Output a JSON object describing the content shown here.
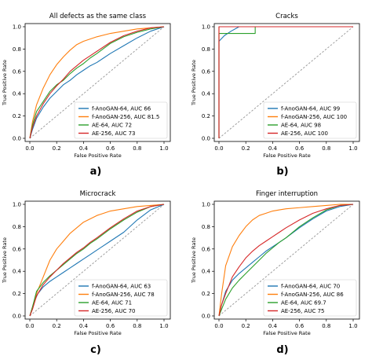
{
  "colors": {
    "f-AnoGAN-64": "#1f77b4",
    "f-AnoGAN-256": "#ff7f0e",
    "AE-64": "#2ca02c",
    "AE-256": "#d62728",
    "chance": "#999999"
  },
  "chart_data": [
    {
      "type": "line",
      "letter": "a)",
      "title": "All defects as the same class",
      "xlabel": "False Positive Rate",
      "ylabel": "True Positive Rate",
      "xlim": [
        0,
        1
      ],
      "ylim": [
        0,
        1
      ],
      "xticks": [
        "0.0",
        "0.2",
        "0.4",
        "0.6",
        "0.8",
        "1.0"
      ],
      "yticks": [
        "0.0",
        "0.2",
        "0.4",
        "0.6",
        "0.8",
        "1.0"
      ],
      "grid": false,
      "legend": "lower-right",
      "diagonal": true,
      "series": [
        {
          "name": "f-AnoGAN-64, AUC 66",
          "x": [
            0,
            0.02,
            0.05,
            0.1,
            0.15,
            0.2,
            0.25,
            0.3,
            0.35,
            0.4,
            0.45,
            0.5,
            0.55,
            0.6,
            0.7,
            0.8,
            0.9,
            1.0
          ],
          "y": [
            0,
            0.08,
            0.18,
            0.28,
            0.36,
            0.42,
            0.48,
            0.52,
            0.57,
            0.61,
            0.65,
            0.68,
            0.72,
            0.76,
            0.83,
            0.9,
            0.96,
            1.0
          ]
        },
        {
          "name": "f-AnoGAN-256, AUC 81.5",
          "x": [
            0,
            0.02,
            0.05,
            0.1,
            0.15,
            0.2,
            0.25,
            0.3,
            0.35,
            0.4,
            0.5,
            0.6,
            0.7,
            0.8,
            0.9,
            1.0
          ],
          "y": [
            0,
            0.15,
            0.3,
            0.45,
            0.57,
            0.66,
            0.73,
            0.79,
            0.84,
            0.87,
            0.91,
            0.94,
            0.96,
            0.98,
            0.99,
            1.0
          ]
        },
        {
          "name": "AE-64, AUC 72",
          "x": [
            0,
            0.02,
            0.05,
            0.1,
            0.15,
            0.2,
            0.25,
            0.3,
            0.35,
            0.4,
            0.45,
            0.5,
            0.6,
            0.7,
            0.8,
            0.9,
            1.0
          ],
          "y": [
            0,
            0.12,
            0.24,
            0.33,
            0.42,
            0.48,
            0.52,
            0.58,
            0.63,
            0.67,
            0.72,
            0.76,
            0.85,
            0.91,
            0.95,
            0.98,
            1.0
          ]
        },
        {
          "name": "AE-256, AUC 73",
          "x": [
            0,
            0.02,
            0.05,
            0.1,
            0.15,
            0.2,
            0.25,
            0.3,
            0.35,
            0.4,
            0.45,
            0.5,
            0.6,
            0.7,
            0.8,
            0.9,
            1.0
          ],
          "y": [
            0,
            0.1,
            0.2,
            0.31,
            0.4,
            0.47,
            0.53,
            0.6,
            0.65,
            0.7,
            0.74,
            0.78,
            0.86,
            0.92,
            0.96,
            0.99,
            1.0
          ]
        }
      ]
    },
    {
      "type": "line",
      "letter": "b)",
      "title": "Cracks",
      "xlabel": "False Positive Rate",
      "ylabel": "True Positive Rate",
      "xlim": [
        0,
        1
      ],
      "ylim": [
        0,
        1
      ],
      "xticks": [
        "0.0",
        "0.2",
        "0.4",
        "0.6",
        "0.8",
        "1.0"
      ],
      "yticks": [
        "0.0",
        "0.2",
        "0.4",
        "0.6",
        "0.8",
        "1.0"
      ],
      "grid": false,
      "legend": "lower-right",
      "diagonal": true,
      "series": [
        {
          "name": "f-AnoGAN-64, AUC 99",
          "x": [
            0,
            0,
            0.04,
            0.09,
            0.15,
            1.0
          ],
          "y": [
            0,
            0.87,
            0.92,
            0.96,
            1.0,
            1.0
          ]
        },
        {
          "name": "f-AnoGAN-256, AUC 100",
          "x": [
            0,
            0,
            1.0
          ],
          "y": [
            0,
            1.0,
            1.0
          ]
        },
        {
          "name": "AE-64, AUC 98",
          "x": [
            0,
            0,
            0.27,
            0.27,
            1.0
          ],
          "y": [
            0,
            0.94,
            0.94,
            1.0,
            1.0
          ]
        },
        {
          "name": "AE-256, AUC 100",
          "x": [
            0,
            0,
            1.0
          ],
          "y": [
            0,
            1.0,
            1.0
          ]
        }
      ]
    },
    {
      "type": "line",
      "letter": "c)",
      "title": "Microcrack",
      "xlabel": "False Positive Rate",
      "ylabel": "True Positive Rate",
      "xlim": [
        0,
        1
      ],
      "ylim": [
        0,
        1
      ],
      "xticks": [
        "0.0",
        "0.2",
        "0.4",
        "0.6",
        "0.8",
        "1.0"
      ],
      "yticks": [
        "0.0",
        "0.2",
        "0.4",
        "0.6",
        "0.8",
        "1.0"
      ],
      "grid": false,
      "legend": "lower-right",
      "diagonal": true,
      "series": [
        {
          "name": "f-AnoGAN-64, AUC 63",
          "x": [
            0,
            0.03,
            0.06,
            0.1,
            0.15,
            0.2,
            0.25,
            0.3,
            0.35,
            0.4,
            0.45,
            0.5,
            0.55,
            0.6,
            0.7,
            0.8,
            0.9,
            1.0
          ],
          "y": [
            0,
            0.12,
            0.2,
            0.26,
            0.31,
            0.35,
            0.39,
            0.43,
            0.47,
            0.51,
            0.55,
            0.59,
            0.63,
            0.67,
            0.75,
            0.86,
            0.95,
            1.0
          ]
        },
        {
          "name": "f-AnoGAN-256, AUC 78",
          "x": [
            0,
            0.02,
            0.05,
            0.1,
            0.15,
            0.2,
            0.25,
            0.3,
            0.35,
            0.4,
            0.5,
            0.6,
            0.7,
            0.8,
            0.9,
            1.0
          ],
          "y": [
            0,
            0.08,
            0.2,
            0.35,
            0.5,
            0.6,
            0.67,
            0.74,
            0.79,
            0.84,
            0.9,
            0.94,
            0.96,
            0.98,
            0.99,
            1.0
          ]
        },
        {
          "name": "AE-64, AUC 71",
          "x": [
            0,
            0.02,
            0.05,
            0.1,
            0.15,
            0.2,
            0.25,
            0.3,
            0.35,
            0.4,
            0.45,
            0.5,
            0.6,
            0.7,
            0.8,
            0.9,
            1.0
          ],
          "y": [
            0,
            0.08,
            0.22,
            0.3,
            0.36,
            0.41,
            0.46,
            0.51,
            0.56,
            0.6,
            0.65,
            0.69,
            0.78,
            0.86,
            0.93,
            0.98,
            1.0
          ]
        },
        {
          "name": "AE-256, AUC 70",
          "x": [
            0,
            0.02,
            0.05,
            0.1,
            0.15,
            0.2,
            0.25,
            0.3,
            0.35,
            0.4,
            0.45,
            0.5,
            0.6,
            0.7,
            0.8,
            0.9,
            1.0
          ],
          "y": [
            0,
            0.06,
            0.18,
            0.28,
            0.35,
            0.41,
            0.47,
            0.52,
            0.57,
            0.61,
            0.66,
            0.7,
            0.79,
            0.87,
            0.94,
            0.98,
            1.0
          ]
        }
      ]
    },
    {
      "type": "line",
      "letter": "d)",
      "title": "Finger interruption",
      "xlabel": "False Positive Rate",
      "ylabel": "True Positive Rate",
      "xlim": [
        0,
        1
      ],
      "ylim": [
        0,
        1
      ],
      "xticks": [
        "0.0",
        "0.2",
        "0.4",
        "0.6",
        "0.8",
        "1.0"
      ],
      "yticks": [
        "0.0",
        "0.2",
        "0.4",
        "0.6",
        "0.8",
        "1.0"
      ],
      "grid": false,
      "legend": "lower-right",
      "diagonal": true,
      "series": [
        {
          "name": "f-AnoGAN-64, AUC 70",
          "x": [
            0,
            0.02,
            0.05,
            0.1,
            0.15,
            0.2,
            0.25,
            0.3,
            0.35,
            0.4,
            0.45,
            0.5,
            0.6,
            0.7,
            0.8,
            0.9,
            1.0
          ],
          "y": [
            0,
            0.1,
            0.22,
            0.32,
            0.38,
            0.43,
            0.48,
            0.53,
            0.58,
            0.62,
            0.66,
            0.7,
            0.79,
            0.87,
            0.94,
            0.98,
            1.0
          ]
        },
        {
          "name": "f-AnoGAN-256, AUC 86",
          "x": [
            0,
            0.02,
            0.05,
            0.1,
            0.15,
            0.2,
            0.25,
            0.3,
            0.35,
            0.4,
            0.45,
            0.5,
            0.6,
            0.7,
            0.8,
            0.9,
            1.0
          ],
          "y": [
            0,
            0.2,
            0.45,
            0.62,
            0.72,
            0.8,
            0.86,
            0.9,
            0.92,
            0.94,
            0.95,
            0.96,
            0.97,
            0.98,
            0.99,
            1.0,
            1.0
          ]
        },
        {
          "name": "AE-64, AUC 69.7",
          "x": [
            0,
            0.02,
            0.05,
            0.1,
            0.15,
            0.2,
            0.25,
            0.3,
            0.35,
            0.4,
            0.45,
            0.5,
            0.6,
            0.7,
            0.8,
            0.9,
            1.0
          ],
          "y": [
            0,
            0.06,
            0.15,
            0.25,
            0.32,
            0.38,
            0.44,
            0.5,
            0.56,
            0.61,
            0.66,
            0.7,
            0.8,
            0.88,
            0.95,
            0.99,
            1.0
          ]
        },
        {
          "name": "AE-256, AUC 75",
          "x": [
            0,
            0.02,
            0.05,
            0.1,
            0.15,
            0.2,
            0.25,
            0.3,
            0.35,
            0.4,
            0.45,
            0.5,
            0.6,
            0.7,
            0.8,
            0.9,
            1.0
          ],
          "y": [
            0,
            0.1,
            0.2,
            0.35,
            0.44,
            0.52,
            0.58,
            0.63,
            0.67,
            0.71,
            0.75,
            0.79,
            0.86,
            0.92,
            0.96,
            0.99,
            1.0
          ]
        }
      ]
    }
  ]
}
